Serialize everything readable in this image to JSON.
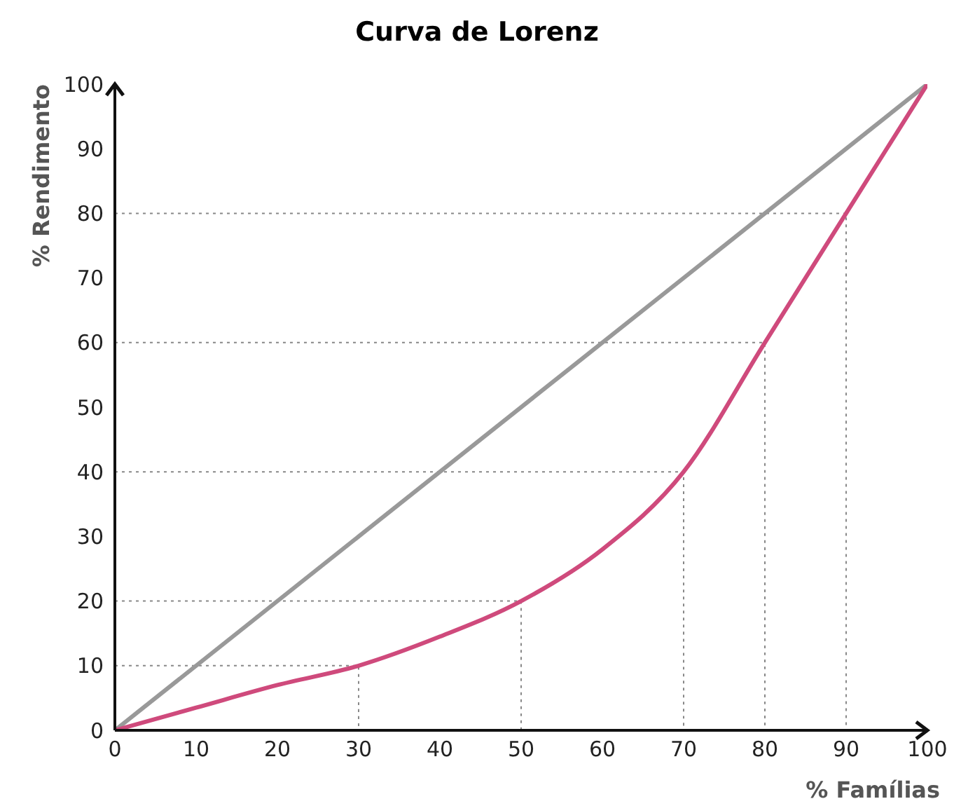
{
  "chart_data": {
    "type": "line",
    "title": "Curva de Lorenz",
    "xlabel": "% Famílias",
    "ylabel": "% Rendimento",
    "xlim": [
      0,
      100
    ],
    "ylim": [
      0,
      100
    ],
    "xticks": [
      0,
      10,
      20,
      30,
      40,
      50,
      60,
      70,
      80,
      90,
      100
    ],
    "yticks": [
      0,
      10,
      20,
      30,
      40,
      50,
      60,
      70,
      80,
      90,
      100
    ],
    "grid": false,
    "marker": "none",
    "series": [
      {
        "color": "#888888",
        "line_style": "dotted",
        "x": [
          0,
          30,
          30
        ],
        "values": [
          10,
          10,
          0
        ]
      },
      {
        "color": "#888888",
        "line_style": "dotted",
        "x": [
          0,
          50,
          50
        ],
        "values": [
          20,
          20,
          0
        ]
      },
      {
        "color": "#888888",
        "line_style": "dotted",
        "x": [
          0,
          70,
          70
        ],
        "values": [
          40,
          40,
          0
        ]
      },
      {
        "color": "#888888",
        "line_style": "dotted",
        "x": [
          0,
          80,
          80
        ],
        "values": [
          60,
          60,
          0
        ]
      },
      {
        "color": "#888888",
        "line_style": "dotted",
        "x": [
          0,
          90,
          90
        ],
        "values": [
          80,
          80,
          0
        ]
      },
      {
        "color": "#999999",
        "line_style": "solid",
        "x": [
          0,
          100
        ],
        "values": [
          0,
          100
        ]
      },
      {
        "color": "#cf4a7c",
        "line_style": "solid",
        "x": [
          0,
          10,
          20,
          30,
          40,
          50,
          60,
          70,
          80,
          90,
          100
        ],
        "values": [
          0,
          3.5,
          7,
          10,
          14.5,
          20,
          28,
          40,
          60,
          80,
          100
        ]
      }
    ]
  }
}
